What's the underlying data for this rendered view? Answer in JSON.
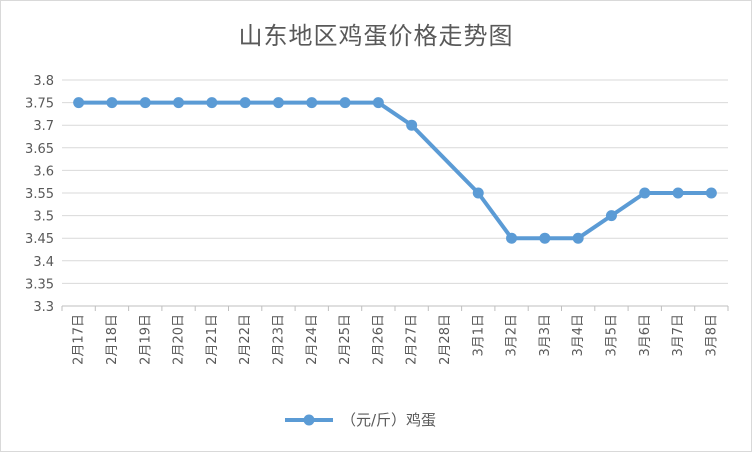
{
  "chart_data": {
    "type": "line",
    "title": "山东地区鸡蛋价格走势图",
    "xlabel": "",
    "ylabel": "",
    "categories": [
      "2月17日",
      "2月18日",
      "2月19日",
      "2月20日",
      "2月21日",
      "2月22日",
      "2月23日",
      "2月24日",
      "2月25日",
      "2月26日",
      "2月27日",
      "2月28日",
      "3月1日",
      "3月2日",
      "3月3日",
      "3月4日",
      "3月5日",
      "3月6日",
      "3月7日",
      "3月8日"
    ],
    "series": [
      {
        "name": "（元/斤）鸡蛋",
        "color": "#5b9bd5",
        "values": [
          3.75,
          3.75,
          3.75,
          3.75,
          3.75,
          3.75,
          3.75,
          3.75,
          3.75,
          3.75,
          3.7,
          null,
          3.55,
          3.45,
          3.45,
          3.45,
          3.5,
          3.55,
          3.55,
          3.55
        ]
      }
    ],
    "ylim": [
      3.3,
      3.8
    ],
    "yticks": [
      "3.8",
      "3.75",
      "3.7",
      "3.65",
      "3.6",
      "3.55",
      "3.5",
      "3.45",
      "3.4",
      "3.35",
      "3.3"
    ],
    "grid": true,
    "legend": "bottom",
    "gridColor": "#d9d9d9",
    "axisColor": "#bfbfbf"
  }
}
